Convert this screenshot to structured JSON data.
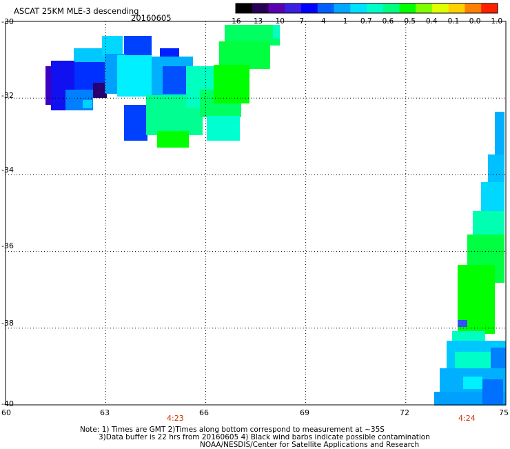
{
  "header": {
    "title": "ASCAT 25KM MLE-3 descending",
    "date": "20160605"
  },
  "colorbar": {
    "ticks": [
      "-16",
      "-13",
      "-10",
      "-7",
      "-4",
      "-1",
      "-0.7",
      "-0.6",
      "-0.5",
      "-0.4",
      "-0.1",
      "0.0",
      "1.0"
    ],
    "colors": [
      "#000000",
      "#2a0055",
      "#5a00b0",
      "#3a20e0",
      "#0000ff",
      "#0060ff",
      "#00a8ff",
      "#00e0ff",
      "#00ffc8",
      "#00ff80",
      "#00ff00",
      "#80ff00",
      "#e0ff00",
      "#ffd000",
      "#ff8000",
      "#ff2000"
    ]
  },
  "axes": {
    "lat_ticks": [
      "-30",
      "-32",
      "-34",
      "-36",
      "-38",
      "-40"
    ],
    "lon_ticks": [
      "60",
      "63",
      "66",
      "69",
      "72",
      "75"
    ],
    "lat_range": [
      -30,
      -40
    ],
    "lon_range": [
      60,
      75
    ],
    "grid": true
  },
  "swath_times": [
    "4:23",
    "4:24"
  ],
  "notes": [
    "Note: 1) Times are GMT 2)Times along bottom correspond to measurement at ~35S",
    "3)Data buffer is 22 hrs from 20160605 4) Black wind barbs indicate possible contamination",
    "NOAA/NESDIS/Center for Satellite Applications and Research"
  ]
}
